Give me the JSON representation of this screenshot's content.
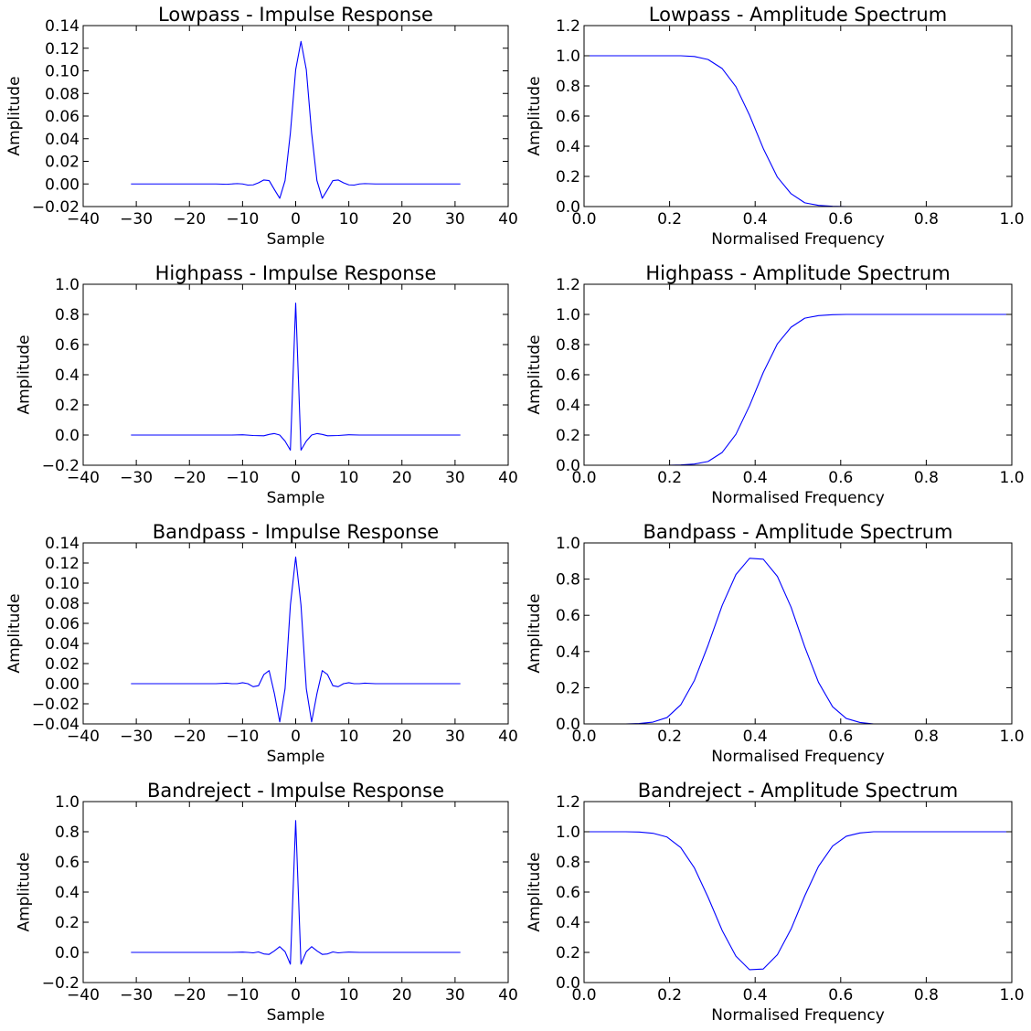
{
  "chart_data": [
    {
      "type": "line",
      "title": "Lowpass - Impulse Response",
      "xlabel": "Sample",
      "ylabel": "Amplitude",
      "xlim": [
        -40,
        40
      ],
      "ylim": [
        -0.02,
        0.14
      ],
      "xticks": [
        -40,
        -30,
        -20,
        -10,
        0,
        10,
        20,
        30,
        40
      ],
      "xtick_labels": [
        "−40",
        "−30",
        "−20",
        "−10",
        "0",
        "10",
        "20",
        "30",
        "40"
      ],
      "yticks": [
        -0.02,
        0.0,
        0.02,
        0.04,
        0.06,
        0.08,
        0.1,
        0.12,
        0.14
      ],
      "ytick_labels": [
        "−0.02",
        "0.00",
        "0.02",
        "0.04",
        "0.06",
        "0.08",
        "0.10",
        "0.12",
        "0.14"
      ],
      "series": [
        {
          "color": "#0000ff",
          "x": [
            -31,
            -15,
            -13,
            -12,
            -11,
            -10,
            -9,
            -8,
            -7,
            -6,
            -5,
            -4,
            -3,
            -2,
            -1,
            0,
            1,
            2,
            3,
            4,
            5,
            6,
            7,
            8,
            9,
            10,
            11,
            12,
            13,
            15,
            31
          ],
          "y": [
            0.0,
            0.0,
            -0.0003,
            0.0,
            0.0003,
            0.0,
            -0.001,
            -0.0008,
            0.001,
            0.0035,
            0.003,
            -0.005,
            -0.0127,
            0.003,
            0.045,
            0.101,
            0.126,
            0.101,
            0.045,
            0.003,
            -0.0127,
            -0.005,
            0.003,
            0.0035,
            0.001,
            -0.0008,
            -0.001,
            0.0,
            0.0003,
            0.0,
            0.0
          ]
        }
      ]
    },
    {
      "type": "line",
      "title": "Lowpass - Amplitude Spectrum",
      "xlabel": "Normalised Frequency",
      "ylabel": "Amplitude",
      "xlim": [
        0,
        1.0
      ],
      "ylim": [
        0,
        1.2
      ],
      "xticks": [
        0,
        0.2,
        0.4,
        0.6,
        0.8,
        1.0
      ],
      "xtick_labels": [
        "0.0",
        "0.2",
        "0.4",
        "0.6",
        "0.8",
        "1.0"
      ],
      "yticks": [
        0,
        0.2,
        0.4,
        0.6,
        0.8,
        1.0,
        1.2
      ],
      "ytick_labels": [
        "0.0",
        "0.2",
        "0.4",
        "0.6",
        "0.8",
        "1.0",
        "1.2"
      ],
      "series": [
        {
          "color": "#0000ff",
          "x": [
            0,
            0.032,
            0.065,
            0.097,
            0.129,
            0.161,
            0.194,
            0.226,
            0.258,
            0.29,
            0.323,
            0.355,
            0.387,
            0.419,
            0.452,
            0.484,
            0.516,
            0.548,
            0.581,
            0.613,
            0.645,
            1.0
          ],
          "y": [
            1.0,
            1.0,
            1.0,
            1.0,
            1.0,
            1.0,
            1.0,
            1.0,
            0.995,
            0.975,
            0.915,
            0.795,
            0.605,
            0.385,
            0.195,
            0.085,
            0.025,
            0.008,
            0.002,
            0.0,
            0.0,
            0.0
          ]
        }
      ]
    },
    {
      "type": "line",
      "title": "Highpass - Impulse Response",
      "xlabel": "Sample",
      "ylabel": "Amplitude",
      "xlim": [
        -40,
        40
      ],
      "ylim": [
        -0.2,
        1.0
      ],
      "xticks": [
        -40,
        -30,
        -20,
        -10,
        0,
        10,
        20,
        30,
        40
      ],
      "xtick_labels": [
        "−40",
        "−30",
        "−20",
        "−10",
        "0",
        "10",
        "20",
        "30",
        "40"
      ],
      "yticks": [
        -0.2,
        0.0,
        0.2,
        0.4,
        0.6,
        0.8,
        1.0
      ],
      "ytick_labels": [
        "−0.2",
        "0.0",
        "0.2",
        "0.4",
        "0.6",
        "0.8",
        "1.0"
      ],
      "series": [
        {
          "color": "#0000ff",
          "x": [
            -31,
            -12,
            -10,
            -8,
            -6,
            -5,
            -4,
            -3,
            -2,
            -1,
            0,
            1,
            2,
            3,
            4,
            5,
            6,
            8,
            10,
            12,
            31
          ],
          "y": [
            0.0,
            0.0,
            0.002,
            -0.003,
            -0.005,
            0.004,
            0.01,
            0.0,
            -0.04,
            -0.1,
            0.875,
            -0.1,
            -0.04,
            0.0,
            0.01,
            0.004,
            -0.005,
            -0.003,
            0.002,
            0.0,
            0.0
          ]
        }
      ]
    },
    {
      "type": "line",
      "title": "Highpass - Amplitude Spectrum",
      "xlabel": "Normalised Frequency",
      "ylabel": "Amplitude",
      "xlim": [
        0,
        1.0
      ],
      "ylim": [
        0,
        1.2
      ],
      "xticks": [
        0,
        0.2,
        0.4,
        0.6,
        0.8,
        1.0
      ],
      "xtick_labels": [
        "0.0",
        "0.2",
        "0.4",
        "0.6",
        "0.8",
        "1.0"
      ],
      "yticks": [
        0,
        0.2,
        0.4,
        0.6,
        0.8,
        1.0,
        1.2
      ],
      "ytick_labels": [
        "0.0",
        "0.2",
        "0.4",
        "0.6",
        "0.8",
        "1.0",
        "1.2"
      ],
      "series": [
        {
          "color": "#0000ff",
          "x": [
            0,
            0.032,
            0.065,
            0.097,
            0.129,
            0.161,
            0.194,
            0.226,
            0.258,
            0.29,
            0.323,
            0.355,
            0.387,
            0.419,
            0.452,
            0.484,
            0.516,
            0.548,
            0.581,
            0.613,
            0.645,
            1.0
          ],
          "y": [
            0.0,
            0.0,
            0.0,
            0.0,
            0.0,
            0.0,
            0.0,
            0.002,
            0.008,
            0.025,
            0.085,
            0.205,
            0.395,
            0.615,
            0.805,
            0.915,
            0.975,
            0.992,
            0.998,
            1.0,
            1.0,
            1.0
          ]
        }
      ]
    },
    {
      "type": "line",
      "title": "Bandpass - Impulse Response",
      "xlabel": "Sample",
      "ylabel": "Amplitude",
      "xlim": [
        -40,
        40
      ],
      "ylim": [
        -0.04,
        0.14
      ],
      "xticks": [
        -40,
        -30,
        -20,
        -10,
        0,
        10,
        20,
        30,
        40
      ],
      "xtick_labels": [
        "−40",
        "−30",
        "−20",
        "−10",
        "0",
        "10",
        "20",
        "30",
        "40"
      ],
      "yticks": [
        -0.04,
        -0.02,
        0.0,
        0.02,
        0.04,
        0.06,
        0.08,
        0.1,
        0.12,
        0.14
      ],
      "ytick_labels": [
        "−0.04",
        "−0.02",
        "0.00",
        "0.02",
        "0.04",
        "0.06",
        "0.08",
        "0.10",
        "0.12",
        "0.14"
      ],
      "series": [
        {
          "color": "#0000ff",
          "x": [
            -31,
            -15,
            -13,
            -12,
            -11,
            -10,
            -9,
            -8,
            -7,
            -6,
            -5,
            -4,
            -3,
            -2,
            -1,
            0,
            1,
            2,
            3,
            4,
            5,
            6,
            7,
            8,
            9,
            10,
            11,
            12,
            13,
            15,
            31
          ],
          "y": [
            0.0,
            0.0,
            0.0005,
            0.0,
            0.0,
            0.001,
            0.0,
            -0.003,
            -0.002,
            0.009,
            0.013,
            -0.01,
            -0.038,
            -0.005,
            0.078,
            0.126,
            0.078,
            -0.005,
            -0.038,
            -0.01,
            0.013,
            0.009,
            -0.002,
            -0.003,
            0.0,
            0.001,
            0.0,
            0.0,
            0.0005,
            0.0,
            0.0
          ]
        }
      ]
    },
    {
      "type": "line",
      "title": "Bandpass - Amplitude Spectrum",
      "xlabel": "Normalised Frequency",
      "ylabel": "Amplitude",
      "xlim": [
        0,
        1.0
      ],
      "ylim": [
        0,
        1.0
      ],
      "xticks": [
        0,
        0.2,
        0.4,
        0.6,
        0.8,
        1.0
      ],
      "xtick_labels": [
        "0.0",
        "0.2",
        "0.4",
        "0.6",
        "0.8",
        "1.0"
      ],
      "yticks": [
        0,
        0.2,
        0.4,
        0.6,
        0.8,
        1.0
      ],
      "ytick_labels": [
        "0.0",
        "0.2",
        "0.4",
        "0.6",
        "0.8",
        "1.0"
      ],
      "series": [
        {
          "color": "#0000ff",
          "x": [
            0,
            0.032,
            0.065,
            0.097,
            0.129,
            0.161,
            0.194,
            0.226,
            0.258,
            0.29,
            0.323,
            0.355,
            0.387,
            0.419,
            0.452,
            0.484,
            0.516,
            0.548,
            0.581,
            0.613,
            0.645,
            0.677,
            1.0
          ],
          "y": [
            0.0,
            0.0,
            0.0,
            0.0,
            0.002,
            0.01,
            0.035,
            0.105,
            0.24,
            0.435,
            0.655,
            0.825,
            0.915,
            0.91,
            0.815,
            0.645,
            0.425,
            0.23,
            0.095,
            0.03,
            0.008,
            0.0,
            0.0
          ]
        }
      ]
    },
    {
      "type": "line",
      "title": "Bandreject - Impulse Response",
      "xlabel": "Sample",
      "ylabel": "Amplitude",
      "xlim": [
        -40,
        40
      ],
      "ylim": [
        -0.2,
        1.0
      ],
      "xticks": [
        -40,
        -30,
        -20,
        -10,
        0,
        10,
        20,
        30,
        40
      ],
      "xtick_labels": [
        "−40",
        "−30",
        "−20",
        "−10",
        "0",
        "10",
        "20",
        "30",
        "40"
      ],
      "yticks": [
        -0.2,
        0.0,
        0.2,
        0.4,
        0.6,
        0.8,
        1.0
      ],
      "ytick_labels": [
        "−0.2",
        "0.0",
        "0.2",
        "0.4",
        "0.6",
        "0.8",
        "1.0"
      ],
      "series": [
        {
          "color": "#0000ff",
          "x": [
            -31,
            -12,
            -10,
            -9,
            -8,
            -7,
            -6,
            -5,
            -4,
            -3,
            -2,
            -1,
            0,
            1,
            2,
            3,
            4,
            5,
            6,
            7,
            8,
            9,
            10,
            12,
            31
          ],
          "y": [
            0.0,
            0.0,
            0.002,
            0.0,
            -0.003,
            0.003,
            -0.01,
            -0.013,
            0.01,
            0.038,
            0.005,
            -0.078,
            0.874,
            -0.078,
            0.005,
            0.038,
            0.01,
            -0.013,
            -0.01,
            0.003,
            -0.003,
            0.0,
            0.002,
            0.0,
            0.0
          ]
        }
      ]
    },
    {
      "type": "line",
      "title": "Bandreject - Amplitude Spectrum",
      "xlabel": "Normalised Frequency",
      "ylabel": "Amplitude",
      "xlim": [
        0,
        1.0
      ],
      "ylim": [
        0,
        1.2
      ],
      "xticks": [
        0,
        0.2,
        0.4,
        0.6,
        0.8,
        1.0
      ],
      "xtick_labels": [
        "0.0",
        "0.2",
        "0.4",
        "0.6",
        "0.8",
        "1.0"
      ],
      "yticks": [
        0,
        0.2,
        0.4,
        0.6,
        0.8,
        1.0,
        1.2
      ],
      "ytick_labels": [
        "0.0",
        "0.2",
        "0.4",
        "0.6",
        "0.8",
        "1.0",
        "1.2"
      ],
      "series": [
        {
          "color": "#0000ff",
          "x": [
            0,
            0.032,
            0.065,
            0.097,
            0.129,
            0.161,
            0.194,
            0.226,
            0.258,
            0.29,
            0.323,
            0.355,
            0.387,
            0.419,
            0.452,
            0.484,
            0.516,
            0.548,
            0.581,
            0.613,
            0.645,
            0.677,
            1.0
          ],
          "y": [
            1.0,
            1.0,
            1.0,
            1.0,
            0.998,
            0.99,
            0.965,
            0.895,
            0.76,
            0.565,
            0.345,
            0.175,
            0.085,
            0.09,
            0.185,
            0.355,
            0.575,
            0.77,
            0.905,
            0.97,
            0.992,
            1.0,
            1.0
          ]
        }
      ]
    }
  ]
}
